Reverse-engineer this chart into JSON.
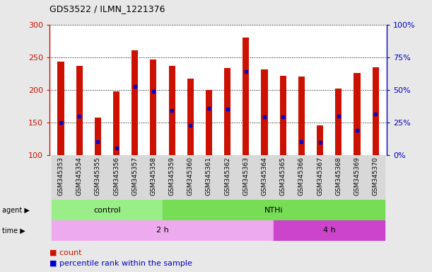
{
  "title": "GDS3522 / ILMN_1221376",
  "samples": [
    "GSM345353",
    "GSM345354",
    "GSM345355",
    "GSM345356",
    "GSM345357",
    "GSM345358",
    "GSM345359",
    "GSM345360",
    "GSM345361",
    "GSM345362",
    "GSM345363",
    "GSM345364",
    "GSM345365",
    "GSM345366",
    "GSM345367",
    "GSM345368",
    "GSM345369",
    "GSM345370"
  ],
  "counts": [
    243,
    237,
    157,
    198,
    260,
    246,
    237,
    217,
    200,
    233,
    280,
    231,
    221,
    220,
    145,
    202,
    226,
    234
  ],
  "percentile_ranks": [
    150,
    160,
    120,
    111,
    205,
    197,
    168,
    145,
    172,
    170,
    228,
    158,
    158,
    120,
    119,
    160,
    138,
    163
  ],
  "y_min": 100,
  "y_max": 300,
  "y_ticks": [
    100,
    150,
    200,
    250,
    300
  ],
  "right_y_ticks": [
    0,
    25,
    50,
    75,
    100
  ],
  "bar_color": "#cc1100",
  "marker_color": "#0000cc",
  "agent_groups": [
    {
      "label": "control",
      "start": 0,
      "end": 6,
      "color": "#99ee88"
    },
    {
      "label": "NTHi",
      "start": 6,
      "end": 18,
      "color": "#77dd55"
    }
  ],
  "time_groups": [
    {
      "label": "2 h",
      "start": 0,
      "end": 12,
      "color": "#eeaaee"
    },
    {
      "label": "4 h",
      "start": 12,
      "end": 18,
      "color": "#cc44cc"
    }
  ],
  "legend_count_label": "count",
  "legend_pct_label": "percentile rank within the sample",
  "bar_width": 0.35,
  "fig_bg": "#e8e8e8"
}
